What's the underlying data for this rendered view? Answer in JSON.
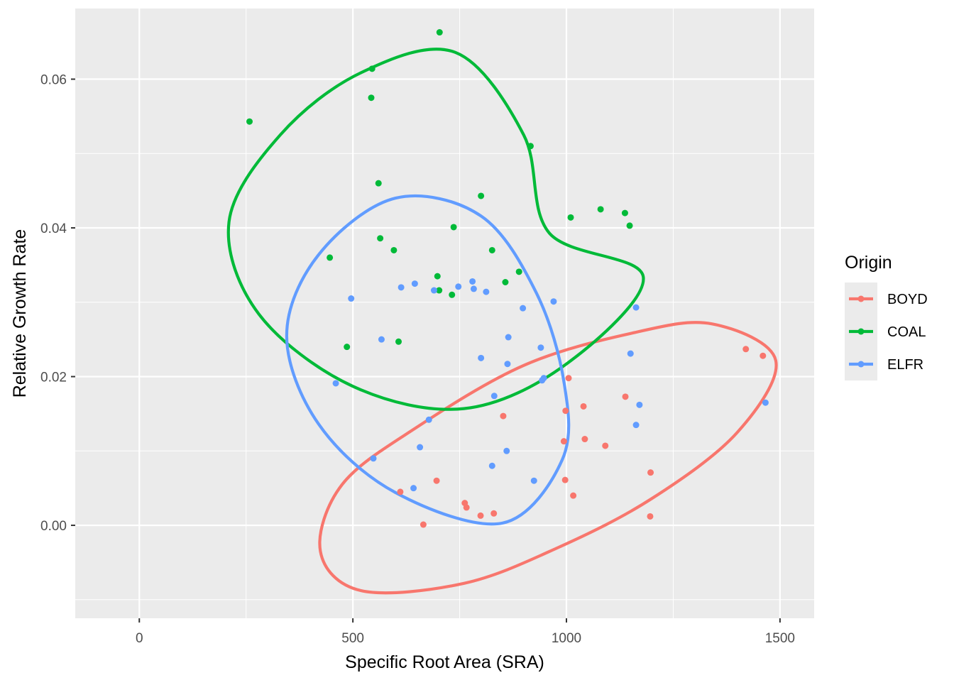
{
  "chart_data": {
    "type": "scatter",
    "title": "",
    "xlabel": "Specific Root Area (SRA)",
    "ylabel": "Relative Growth Rate",
    "xlim": [
      -150,
      1580
    ],
    "ylim": [
      -0.0125,
      0.0695
    ],
    "x_ticks": [
      0,
      500,
      1000,
      1500
    ],
    "x_tick_labels": [
      "0",
      "500",
      "1000",
      "1500"
    ],
    "y_ticks": [
      0.0,
      0.02,
      0.04,
      0.06
    ],
    "y_tick_labels": [
      "0.00",
      "0.02",
      "0.04",
      "0.06"
    ],
    "grid": true,
    "legend": {
      "title": "Origin",
      "position": "right"
    },
    "series": [
      {
        "name": "BOYD",
        "color": "#F8766D",
        "points": [
          [
            1420,
            0.0237
          ],
          [
            1460,
            0.0228
          ],
          [
            1005,
            0.0198
          ],
          [
            998,
            0.0154
          ],
          [
            1040,
            0.016
          ],
          [
            1138,
            0.0173
          ],
          [
            852,
            0.0147
          ],
          [
            994,
            0.0113
          ],
          [
            1043,
            0.0116
          ],
          [
            1091,
            0.0107
          ],
          [
            1197,
            0.0071
          ],
          [
            997,
            0.0061
          ],
          [
            1016,
            0.004
          ],
          [
            696,
            0.006
          ],
          [
            762,
            0.003
          ],
          [
            766,
            0.0024
          ],
          [
            799,
            0.0013
          ],
          [
            830,
            0.0016
          ],
          [
            611,
            0.0045
          ],
          [
            665,
            0.0001
          ],
          [
            1196,
            0.0012
          ]
        ],
        "ellipse": {
          "center": [
            960,
            0.0093
          ],
          "theta_deg": 0,
          "rx": 535,
          "ry": 0.018,
          "display_points": [
            [
              1490,
              0.0222
            ],
            [
              1340,
              0.0271
            ],
            [
              1150,
              0.0258
            ],
            [
              900,
              0.0215
            ],
            [
              650,
              0.0132
            ],
            [
              475,
              0.0055
            ],
            [
              424,
              -0.0035
            ],
            [
              520,
              -0.0088
            ],
            [
              760,
              -0.0078
            ],
            [
              980,
              -0.003
            ],
            [
              1200,
              0.0036
            ],
            [
              1400,
              0.0125
            ]
          ]
        }
      },
      {
        "name": "COAL",
        "color": "#00BA38",
        "points": [
          [
            258,
            0.0543
          ],
          [
            545,
            0.0614
          ],
          [
            543,
            0.0575
          ],
          [
            703,
            0.0663
          ],
          [
            560,
            0.046
          ],
          [
            916,
            0.051
          ],
          [
            564,
            0.0386
          ],
          [
            596,
            0.037
          ],
          [
            736,
            0.0401
          ],
          [
            800,
            0.0443
          ],
          [
            826,
            0.037
          ],
          [
            1010,
            0.0414
          ],
          [
            1080,
            0.0425
          ],
          [
            1137,
            0.042
          ],
          [
            1148,
            0.0403
          ],
          [
            446,
            0.036
          ],
          [
            698,
            0.0335
          ],
          [
            702,
            0.0316
          ],
          [
            732,
            0.031
          ],
          [
            889,
            0.0341
          ],
          [
            857,
            0.0327
          ],
          [
            486,
            0.024
          ],
          [
            607,
            0.0247
          ]
        ],
        "ellipse": {
          "display_points": [
            [
              960,
              0.0393
            ],
            [
              900,
              0.0525
            ],
            [
              740,
              0.0636
            ],
            [
              520,
              0.0609
            ],
            [
              330,
              0.0525
            ],
            [
              210,
              0.0408
            ],
            [
              280,
              0.0284
            ],
            [
              500,
              0.0187
            ],
            [
              760,
              0.0157
            ],
            [
              1000,
              0.0217
            ],
            [
              1180,
              0.0334
            ]
          ]
        }
      },
      {
        "name": "ELFR",
        "color": "#619CFF",
        "points": [
          [
            496,
            0.0305
          ],
          [
            613,
            0.032
          ],
          [
            645,
            0.0325
          ],
          [
            690,
            0.0316
          ],
          [
            747,
            0.0321
          ],
          [
            780,
            0.0328
          ],
          [
            783,
            0.0318
          ],
          [
            812,
            0.0314
          ],
          [
            970,
            0.0301
          ],
          [
            898,
            0.0292
          ],
          [
            1163,
            0.0293
          ],
          [
            567,
            0.025
          ],
          [
            864,
            0.0253
          ],
          [
            800,
            0.0225
          ],
          [
            862,
            0.0217
          ],
          [
            940,
            0.0239
          ],
          [
            943,
            0.0195
          ],
          [
            947,
            0.0198
          ],
          [
            1150,
            0.0231
          ],
          [
            460,
            0.0191
          ],
          [
            831,
            0.0174
          ],
          [
            1171,
            0.0162
          ],
          [
            1163,
            0.0135
          ],
          [
            678,
            0.0142
          ],
          [
            1466,
            0.0165
          ],
          [
            548,
            0.009
          ],
          [
            657,
            0.0105
          ],
          [
            860,
            0.01
          ],
          [
            826,
            0.008
          ],
          [
            924,
            0.006
          ],
          [
            642,
            0.005
          ]
        ],
        "ellipse": {
          "display_points": [
            [
              995,
              0.019
            ],
            [
              930,
              0.0312
            ],
            [
              800,
              0.0416
            ],
            [
              600,
              0.044
            ],
            [
              420,
              0.0364
            ],
            [
              345,
              0.0255
            ],
            [
              420,
              0.0136
            ],
            [
              600,
              0.0044
            ],
            [
              850,
              0.0003
            ],
            [
              990,
              0.0088
            ]
          ]
        }
      }
    ]
  }
}
